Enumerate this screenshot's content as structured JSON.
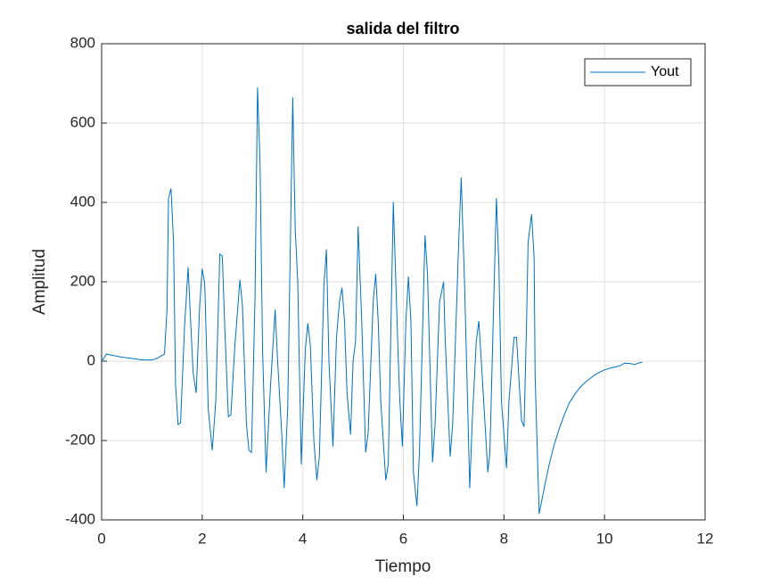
{
  "chart_data": {
    "type": "line",
    "title": "salida del filtro",
    "xlabel": "Tiempo",
    "ylabel": "Amplitud",
    "x": [
      0,
      0.1,
      0.2,
      0.4,
      0.6,
      0.8,
      1.0,
      1.1,
      1.25,
      1.3,
      1.33,
      1.38,
      1.43,
      1.47,
      1.52,
      1.57,
      1.65,
      1.72,
      1.77,
      1.82,
      1.88,
      1.95,
      2.0,
      2.05,
      2.12,
      2.2,
      2.27,
      2.35,
      2.4,
      2.45,
      2.52,
      2.57,
      2.65,
      2.75,
      2.8,
      2.88,
      2.93,
      2.98,
      3.05,
      3.1,
      3.15,
      3.2,
      3.27,
      3.35,
      3.45,
      3.5,
      3.58,
      3.63,
      3.7,
      3.8,
      3.85,
      3.9,
      3.97,
      4.05,
      4.1,
      4.15,
      4.22,
      4.28,
      4.33,
      4.42,
      4.47,
      4.52,
      4.6,
      4.67,
      4.73,
      4.78,
      4.83,
      4.88,
      4.95,
      5.0,
      5.05,
      5.1,
      5.17,
      5.25,
      5.3,
      5.4,
      5.45,
      5.5,
      5.55,
      5.65,
      5.7,
      5.8,
      5.85,
      5.9,
      5.93,
      5.98,
      6.05,
      6.1,
      6.15,
      6.2,
      6.27,
      6.32,
      6.43,
      6.48,
      6.58,
      6.63,
      6.72,
      6.8,
      6.83,
      6.93,
      6.98,
      7.1,
      7.15,
      7.22,
      7.32,
      7.37,
      7.45,
      7.5,
      7.55,
      7.68,
      7.72,
      7.85,
      7.9,
      7.95,
      8.05,
      8.1,
      8.2,
      8.25,
      8.3,
      8.35,
      8.4,
      8.45,
      8.48,
      8.55,
      8.6,
      8.62,
      8.7,
      8.8,
      8.9,
      9.0,
      9.1,
      9.2,
      9.3,
      9.4,
      9.5,
      9.6,
      9.7,
      9.8,
      9.9,
      10.0,
      10.1,
      10.2,
      10.3,
      10.4,
      10.5,
      10.6,
      10.7,
      10.75
    ],
    "series": [
      {
        "name": "Yout",
        "color": "#0072bd",
        "values": [
          0,
          18,
          15,
          10,
          7,
          3,
          3,
          7,
          18,
          130,
          410,
          435,
          300,
          -60,
          -160,
          -155,
          90,
          237,
          100,
          -30,
          -80,
          140,
          233,
          195,
          -120,
          -225,
          -100,
          270,
          265,
          80,
          -140,
          -135,
          40,
          205,
          140,
          -160,
          -225,
          -230,
          160,
          690,
          500,
          30,
          -280,
          -80,
          130,
          0,
          -180,
          -320,
          -120,
          665,
          330,
          200,
          -260,
          30,
          95,
          40,
          -200,
          -300,
          -240,
          190,
          282,
          0,
          -215,
          60,
          150,
          185,
          100,
          -80,
          -185,
          0,
          50,
          339,
          110,
          -230,
          -180,
          150,
          220,
          100,
          -100,
          -300,
          -260,
          401,
          200,
          0,
          -100,
          -215,
          100,
          213,
          100,
          -280,
          -365,
          -230,
          317,
          220,
          -255,
          -160,
          150,
          200,
          60,
          -240,
          -160,
          300,
          463,
          180,
          -320,
          -150,
          50,
          101,
          0,
          -280,
          -230,
          411,
          240,
          -100,
          -270,
          -100,
          60,
          60,
          -50,
          -150,
          -165,
          100,
          300,
          370,
          260,
          -40,
          -385,
          -320,
          -260,
          -210,
          -170,
          -135,
          -105,
          -85,
          -68,
          -55,
          -45,
          -35,
          -28,
          -22,
          -18,
          -15,
          -12,
          -5,
          -6,
          -8,
          -4,
          -3
        ]
      }
    ],
    "xlim": [
      0,
      12
    ],
    "xticks": [
      0,
      2,
      4,
      6,
      8,
      10,
      12
    ],
    "ylim": [
      -400,
      800
    ],
    "yticks": [
      -400,
      -200,
      0,
      200,
      400,
      600,
      800
    ],
    "grid": true,
    "legend": "northeast"
  }
}
